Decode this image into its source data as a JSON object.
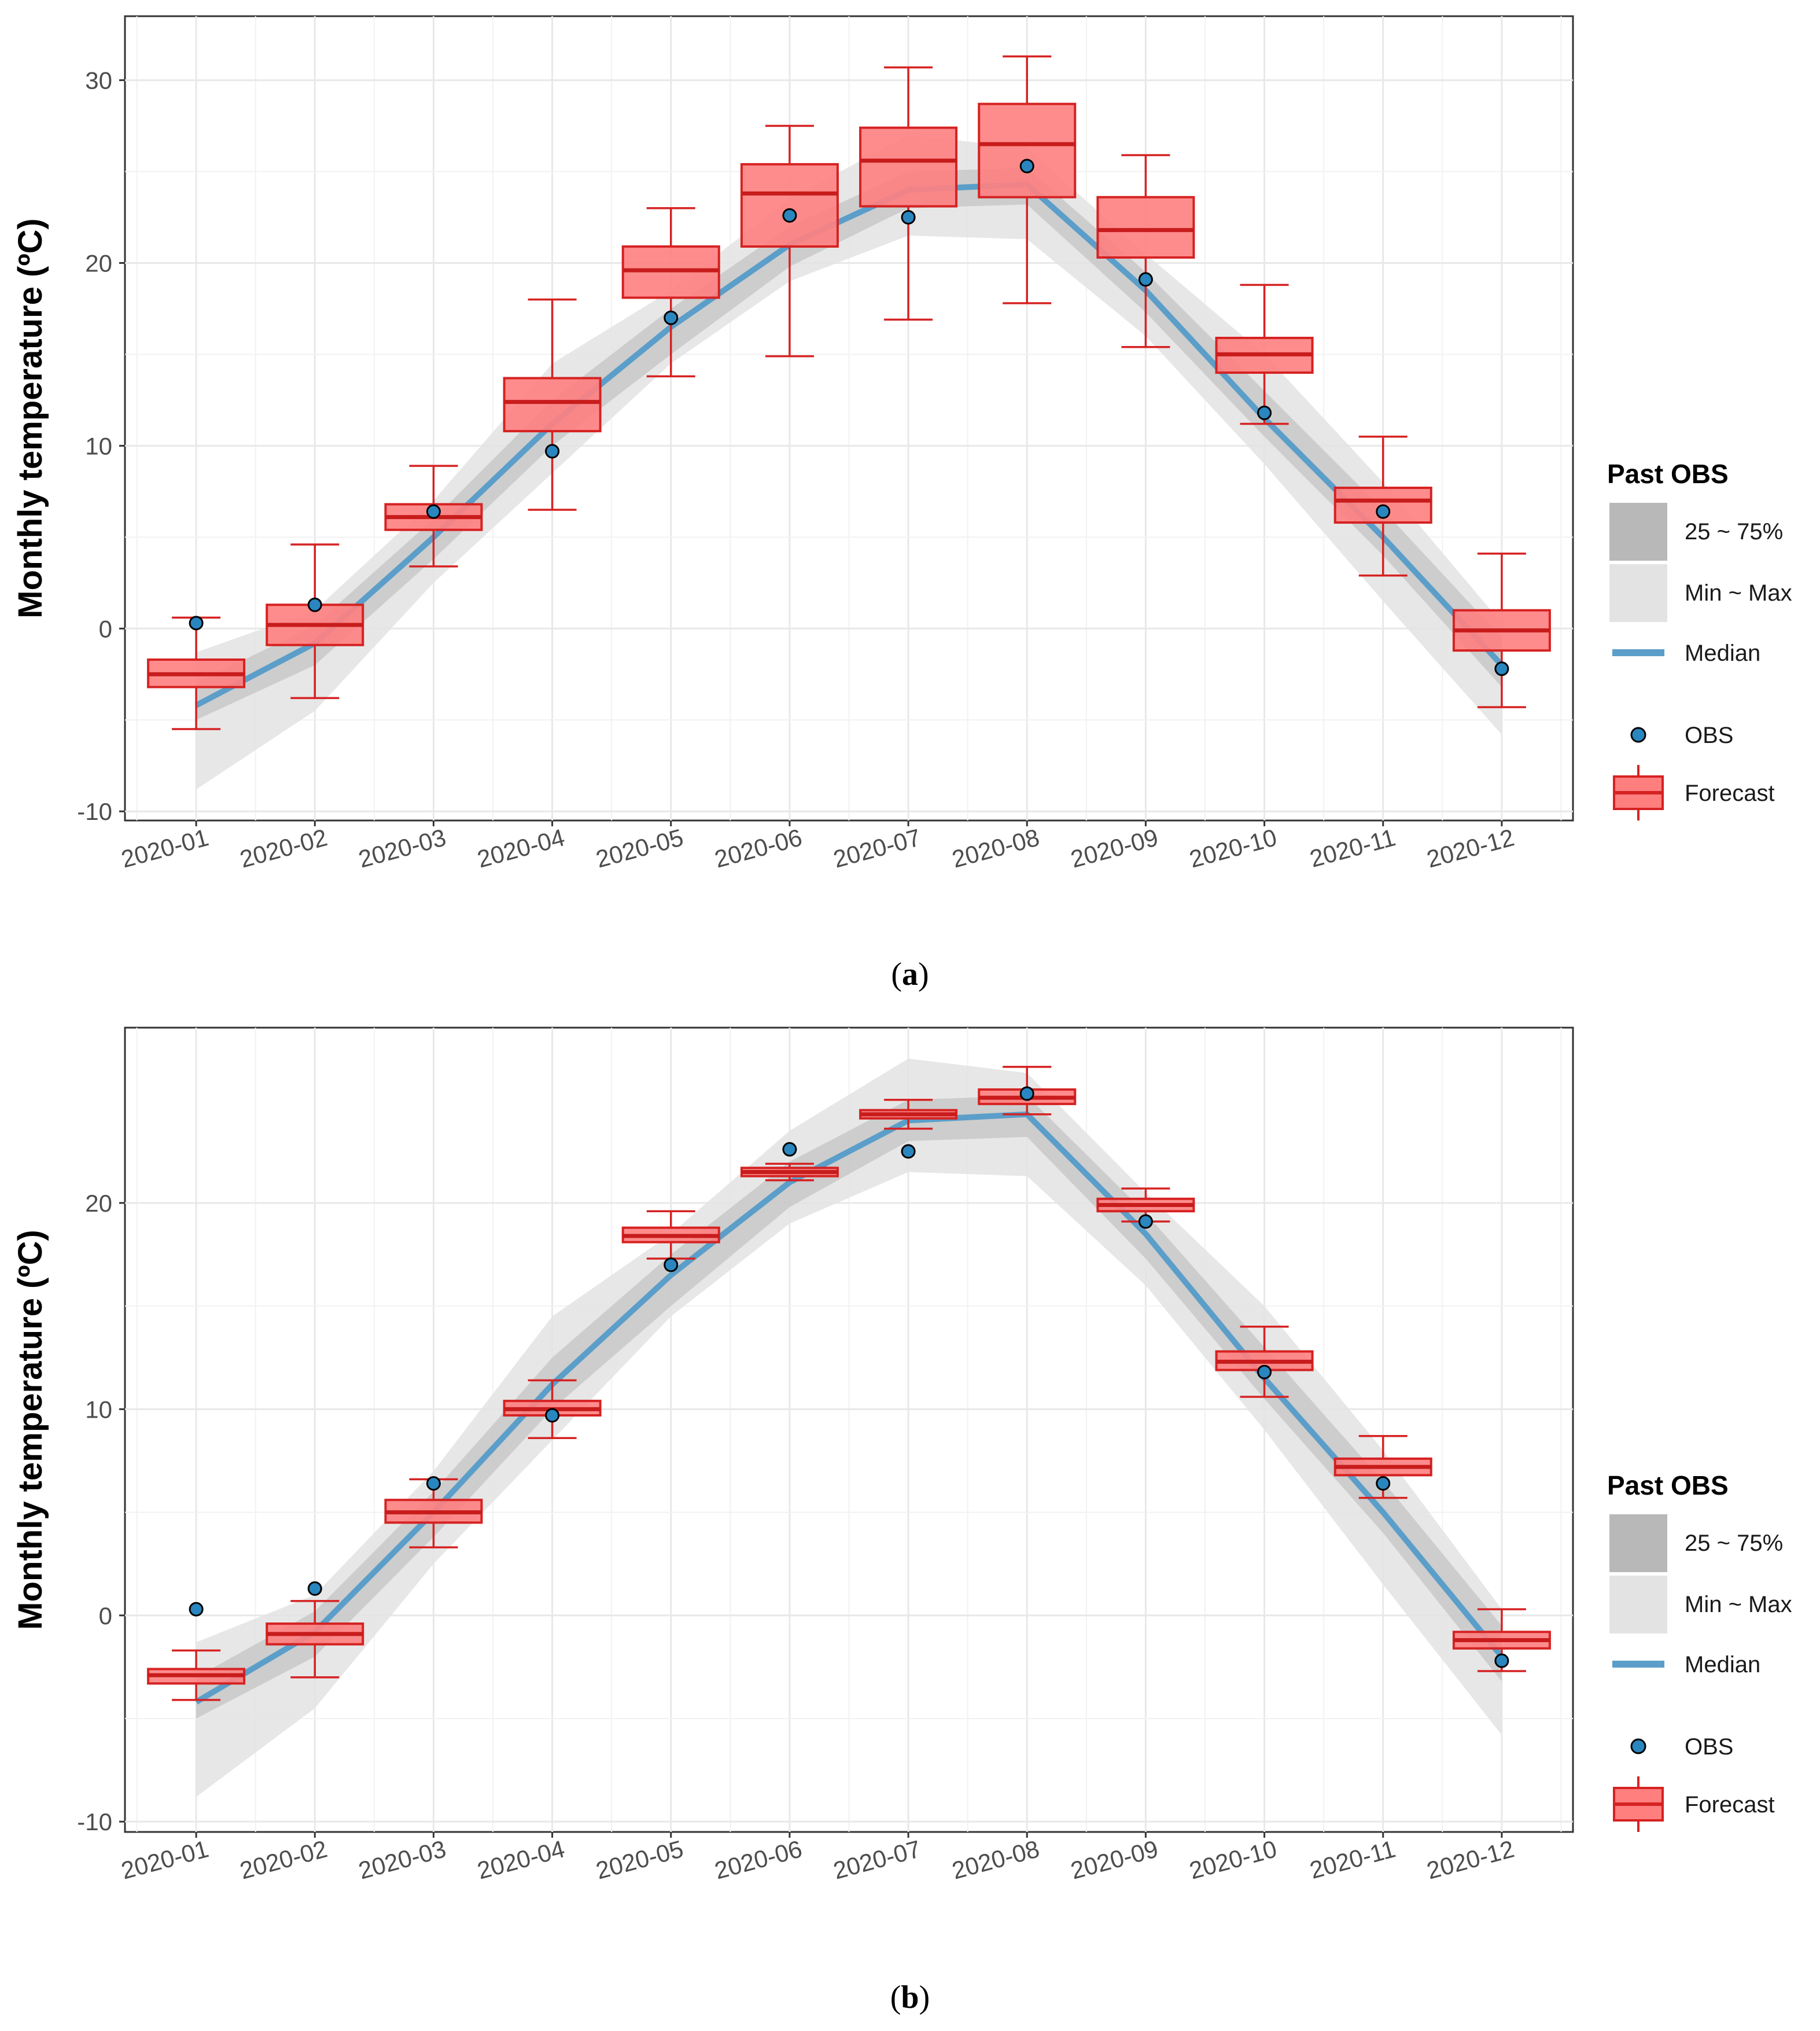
{
  "chart_data": [
    {
      "type": "box",
      "caption_label": "a",
      "ylabel": "Monthly temperature (ºC)",
      "ylim": [
        -10.5,
        33.5
      ],
      "yticks": [
        -10,
        0,
        10,
        20,
        30
      ],
      "categories": [
        "2020-01",
        "2020-02",
        "2020-03",
        "2020-04",
        "2020-05",
        "2020-06",
        "2020-07",
        "2020-08",
        "2020-09",
        "2020-10",
        "2020-11",
        "2020-12"
      ],
      "past_obs": {
        "median": [
          -4.2,
          -0.8,
          5.0,
          11.2,
          16.5,
          21.0,
          24.0,
          24.3,
          18.5,
          11.5,
          5.0,
          -2.0
        ],
        "q25": [
          -5.0,
          -2.0,
          3.8,
          10.0,
          15.0,
          19.8,
          23.0,
          23.2,
          17.3,
          10.5,
          4.0,
          -3.2
        ],
        "q75": [
          -3.0,
          0.2,
          6.0,
          12.5,
          17.5,
          22.0,
          25.0,
          25.2,
          19.5,
          13.0,
          6.5,
          -0.5
        ],
        "min": [
          -8.8,
          -4.5,
          2.5,
          8.5,
          14.5,
          19.0,
          21.5,
          21.3,
          16.0,
          9.0,
          1.5,
          -5.8
        ],
        "max": [
          -1.3,
          1.0,
          7.0,
          14.5,
          18.5,
          23.5,
          27.0,
          26.3,
          20.5,
          15.0,
          8.0,
          0.3
        ]
      },
      "obs": [
        0.3,
        1.3,
        6.4,
        9.7,
        17.0,
        22.6,
        22.5,
        25.3,
        19.1,
        11.8,
        6.4,
        -2.2
      ],
      "forecast": {
        "min": [
          -5.5,
          -3.8,
          3.4,
          6.5,
          13.8,
          14.9,
          16.9,
          17.8,
          15.4,
          11.2,
          2.9,
          -4.3
        ],
        "q1": [
          -3.2,
          -0.9,
          5.4,
          10.8,
          18.1,
          20.9,
          23.1,
          23.6,
          20.3,
          14.0,
          5.8,
          -1.2
        ],
        "median": [
          -2.5,
          0.2,
          6.1,
          12.4,
          19.6,
          23.8,
          25.6,
          26.5,
          21.8,
          15.0,
          7.0,
          -0.1
        ],
        "q3": [
          -1.7,
          1.3,
          6.8,
          13.7,
          20.9,
          25.4,
          27.4,
          28.7,
          23.6,
          15.9,
          7.7,
          1.0
        ],
        "max": [
          0.6,
          4.6,
          8.9,
          18.0,
          23.0,
          27.5,
          30.7,
          31.3,
          25.9,
          18.8,
          10.5,
          4.1
        ]
      }
    },
    {
      "type": "box",
      "caption_label": "b",
      "ylabel": "Monthly temperature (ºC)",
      "ylim": [
        -10.5,
        28.5
      ],
      "yticks": [
        -10,
        0,
        10,
        20
      ],
      "categories": [
        "2020-01",
        "2020-02",
        "2020-03",
        "2020-04",
        "2020-05",
        "2020-06",
        "2020-07",
        "2020-08",
        "2020-09",
        "2020-10",
        "2020-11",
        "2020-12"
      ],
      "past_obs": {
        "median": [
          -4.2,
          -0.8,
          5.0,
          11.2,
          16.5,
          21.0,
          24.0,
          24.3,
          18.5,
          11.5,
          5.0,
          -2.0
        ],
        "q25": [
          -5.0,
          -2.0,
          3.8,
          10.0,
          15.0,
          19.8,
          23.0,
          23.2,
          17.3,
          10.5,
          4.0,
          -3.2
        ],
        "q75": [
          -3.0,
          0.2,
          6.0,
          12.5,
          17.5,
          22.0,
          25.0,
          25.2,
          19.5,
          13.0,
          6.5,
          -0.5
        ],
        "min": [
          -8.8,
          -4.5,
          2.5,
          8.5,
          14.5,
          19.0,
          21.5,
          21.3,
          16.0,
          9.0,
          1.5,
          -5.8
        ],
        "max": [
          -1.3,
          1.0,
          7.0,
          14.5,
          18.5,
          23.5,
          27.0,
          26.3,
          20.5,
          15.0,
          8.0,
          0.3
        ]
      },
      "obs": [
        0.3,
        1.3,
        6.4,
        9.7,
        17.0,
        22.6,
        22.5,
        25.3,
        19.1,
        11.8,
        6.4,
        -2.2
      ],
      "forecast": {
        "min": [
          -4.1,
          -3.0,
          3.3,
          8.6,
          17.3,
          21.1,
          23.6,
          24.3,
          19.1,
          10.6,
          5.7,
          -2.7
        ],
        "q1": [
          -3.3,
          -1.4,
          4.5,
          9.7,
          18.1,
          21.3,
          24.1,
          24.8,
          19.6,
          11.9,
          6.8,
          -1.6
        ],
        "median": [
          -2.9,
          -0.9,
          5.0,
          10.0,
          18.4,
          21.5,
          24.3,
          25.1,
          19.9,
          12.3,
          7.2,
          -1.2
        ],
        "q3": [
          -2.6,
          -0.4,
          5.6,
          10.4,
          18.8,
          21.7,
          24.5,
          25.5,
          20.2,
          12.8,
          7.6,
          -0.8
        ],
        "max": [
          -1.7,
          0.7,
          6.6,
          11.4,
          19.6,
          21.9,
          25.0,
          26.6,
          20.7,
          14.0,
          8.7,
          0.3
        ]
      }
    }
  ],
  "legend": {
    "title": "Past OBS",
    "q_label": "25 ~ 75%",
    "range_label": "Min ~ Max",
    "median_label": "Median",
    "obs_label": "OBS",
    "forecast_label": "Forecast"
  },
  "colors": {
    "median_line": "#5b9ec9",
    "obs_fill": "#2a86bf",
    "box_fill": "#ff7f7f",
    "box_stroke": "#d62222",
    "band_q": "#b8b8b8",
    "band_range": "#e3e3e3"
  }
}
